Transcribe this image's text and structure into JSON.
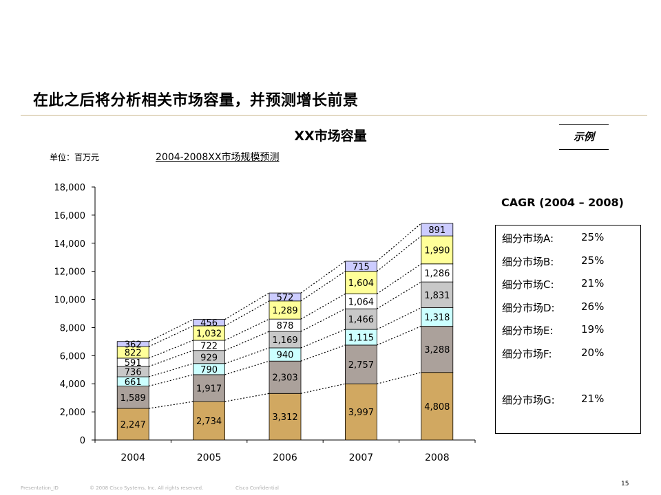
{
  "slide": {
    "title": "在此之后将分析相关市场容量，并预测增长前景",
    "example_tag": "示例",
    "page_number": "15",
    "footer": {
      "presentation_id": "Presentation_ID",
      "copyright": "© 2008 Cisco Systems, Inc. All rights reserved.",
      "confidential": "Cisco Confidential"
    }
  },
  "chart_data": {
    "type": "bar",
    "stacked": true,
    "title": "XX市场容量",
    "subtitle": "2004-2008XX市场规模预测",
    "unit_label": "单位：百万元",
    "categories": [
      "2004",
      "2005",
      "2006",
      "2007",
      "2008"
    ],
    "ylim": [
      0,
      18000
    ],
    "yticks": [
      0,
      2000,
      4000,
      6000,
      8000,
      10000,
      12000,
      14000,
      16000,
      18000
    ],
    "ytick_labels": [
      "0",
      "2,000",
      "4,000",
      "6,000",
      "8,000",
      "10,000",
      "12,000",
      "14,000",
      "16,000",
      "18,000"
    ],
    "grid": false,
    "series": [
      {
        "name": "细分市场G",
        "color": "#d1a861",
        "values": [
          2247,
          2734,
          3312,
          3997,
          4808
        ],
        "labels": [
          "2,247",
          "2,734",
          "3,312",
          "3,997",
          "4,808"
        ]
      },
      {
        "name": "细分市场F",
        "color": "#aba19b",
        "values": [
          1589,
          1917,
          2303,
          2757,
          3288
        ],
        "labels": [
          "1,589",
          "1,917",
          "2,303",
          "2,757",
          "3,288"
        ]
      },
      {
        "name": "细分市场E",
        "color": "#ccffff",
        "values": [
          661,
          790,
          940,
          1115,
          1318
        ],
        "labels": [
          "661",
          "790",
          "940",
          "1,115",
          "1,318"
        ]
      },
      {
        "name": "细分市场D",
        "color": "#c8c8c8",
        "values": [
          736,
          929,
          1169,
          1466,
          1831
        ],
        "labels": [
          "736",
          "929",
          "1,169",
          "1,466",
          "1,831"
        ]
      },
      {
        "name": "细分市场C",
        "color": "#ffffff",
        "values": [
          591,
          722,
          878,
          1064,
          1286
        ],
        "labels": [
          "591",
          "722",
          "878",
          "1,064",
          "1,286"
        ]
      },
      {
        "name": "细分市场B",
        "color": "#ffff99",
        "values": [
          822,
          1032,
          1289,
          1604,
          1990
        ],
        "labels": [
          "822",
          "1,032",
          "1,289",
          "1,604",
          "1,990"
        ]
      },
      {
        "name": "细分市场A",
        "color": "#ccccff",
        "values": [
          362,
          456,
          572,
          715,
          891
        ],
        "labels": [
          "362",
          "456",
          "572",
          "715",
          "891"
        ]
      }
    ],
    "trend_lines": "dotted lines connecting the top of each segment between 2004 and 2008"
  },
  "cagr": {
    "title": "CAGR (2004 – 2008)",
    "rows": [
      {
        "segment": "细分市场A:",
        "value": "25%"
      },
      {
        "segment": "细分市场B:",
        "value": "25%"
      },
      {
        "segment": "细分市场C:",
        "value": "21%"
      },
      {
        "segment": "细分市场D:",
        "value": "26%"
      },
      {
        "segment": "细分市场E:",
        "value": "19%"
      },
      {
        "segment": "细分市场F:",
        "value": "20%"
      },
      {
        "segment": "细分市场G:",
        "value": "21%"
      }
    ]
  }
}
